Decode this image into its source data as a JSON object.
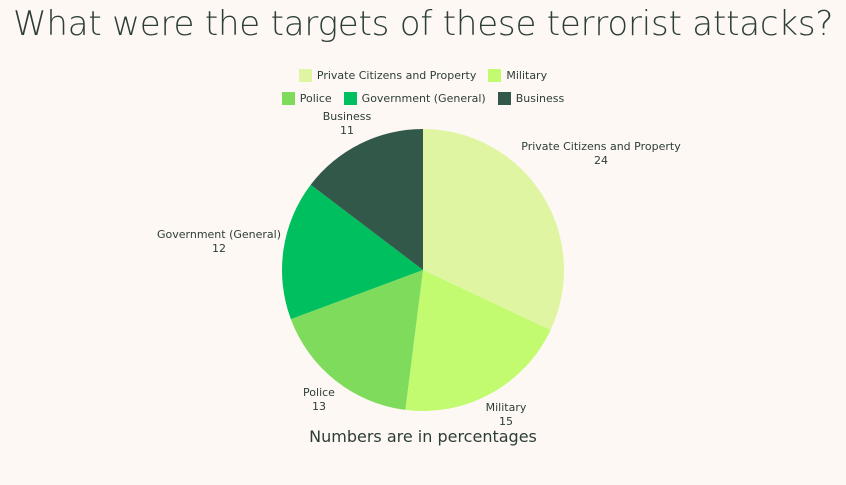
{
  "title": "What were the targets of these terrorist attacks?",
  "caption": "Numbers are in percentages",
  "chart_data": {
    "type": "pie",
    "title": "What were the targets of these terrorist attacks?",
    "legend_position": "top",
    "categories": [
      "Private Citizens and Property",
      "Military",
      "Police",
      "Government (General)",
      "Business"
    ],
    "values": [
      24,
      15,
      13,
      12,
      11
    ],
    "colors": [
      "#e0f5a2",
      "#c2fb70",
      "#7fdb5b",
      "#00bf5f",
      "#32584a"
    ]
  }
}
